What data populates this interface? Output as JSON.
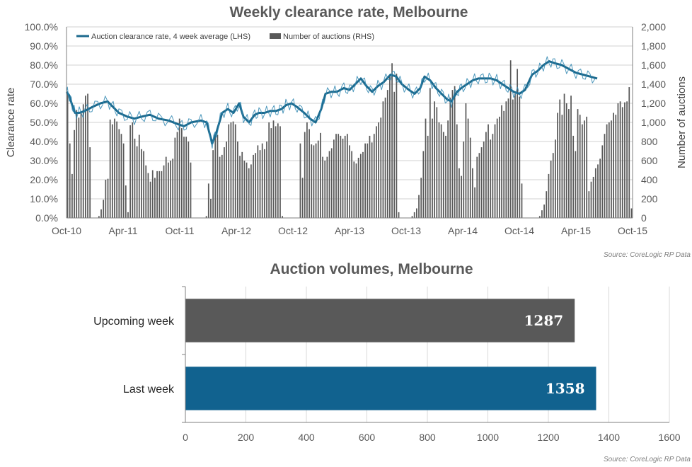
{
  "chart_data": [
    {
      "type": "line",
      "title": "Weekly clearance rate, Melbourne",
      "ylabel": "Clearance rate",
      "y2label": "Number of auctions",
      "ylim": [
        0,
        100
      ],
      "y2lim": [
        0,
        2000
      ],
      "yticks": [
        "0.0%",
        "10.0%",
        "20.0%",
        "30.0%",
        "40.0%",
        "50.0%",
        "60.0%",
        "70.0%",
        "80.0%",
        "90.0%",
        "100.0%"
      ],
      "y2ticks": [
        "0",
        "200",
        "400",
        "600",
        "800",
        "1,000",
        "1,200",
        "1,400",
        "1,600",
        "1,800",
        "2,000"
      ],
      "xticks": [
        "Oct-10",
        "Apr-11",
        "Oct-11",
        "Apr-12",
        "Oct-12",
        "Apr-13",
        "Oct-13",
        "Apr-14",
        "Oct-14",
        "Apr-15",
        "Oct-15"
      ],
      "legend": [
        {
          "name": "Auction clearance rate, 4 week average (LHS)",
          "color": "#1c6a8e"
        },
        {
          "name": "Number of auctions (RHS)",
          "color": "#595959"
        }
      ],
      "grid": true,
      "source": "Source: CoreLogic  RP Data",
      "series": [
        {
          "name": "Auction clearance rate, 4 week average (LHS)",
          "axis": "left",
          "color": "#1c6a8e",
          "points": [
            [
              0,
              66
            ],
            [
              0.2,
              64
            ],
            [
              0.4,
              59
            ],
            [
              0.6,
              55
            ],
            [
              0.9,
              55
            ],
            [
              1.3,
              56
            ],
            [
              1.8,
              58
            ],
            [
              2.4,
              60
            ],
            [
              2.9,
              61
            ],
            [
              3.3,
              58
            ],
            [
              3.7,
              55
            ],
            [
              4.3,
              53
            ],
            [
              4.8,
              52
            ],
            [
              5.3,
              53
            ],
            [
              5.9,
              54
            ],
            [
              6.5,
              52
            ],
            [
              7.2,
              51
            ],
            [
              7.9,
              49
            ],
            [
              8.3,
              48
            ],
            [
              8.8,
              50
            ],
            [
              9.5,
              51
            ],
            [
              9.9,
              50
            ],
            [
              10.3,
              39
            ],
            [
              10.6,
              45
            ],
            [
              11.0,
              55
            ],
            [
              11.4,
              57
            ],
            [
              11.8,
              55
            ],
            [
              12.2,
              60
            ],
            [
              12.5,
              53
            ],
            [
              12.9,
              50
            ],
            [
              13.3,
              54
            ],
            [
              13.6,
              55
            ],
            [
              14.0,
              55
            ],
            [
              14.4,
              56
            ],
            [
              14.8,
              56
            ],
            [
              15.2,
              57
            ],
            [
              15.5,
              59
            ],
            [
              15.9,
              60
            ],
            [
              16.3,
              58
            ],
            [
              16.8,
              55
            ],
            [
              17.2,
              52
            ],
            [
              17.6,
              50
            ],
            [
              18.0,
              57
            ],
            [
              18.3,
              65
            ],
            [
              18.7,
              66
            ],
            [
              19.1,
              66
            ],
            [
              19.6,
              68
            ],
            [
              20.0,
              67
            ],
            [
              20.4,
              70
            ],
            [
              20.8,
              73
            ],
            [
              21.2,
              69
            ],
            [
              21.6,
              66
            ],
            [
              22.0,
              69
            ],
            [
              22.4,
              71
            ],
            [
              22.9,
              75
            ],
            [
              23.3,
              74
            ],
            [
              23.7,
              70
            ],
            [
              24.2,
              67
            ],
            [
              24.6,
              65
            ],
            [
              25.0,
              68
            ],
            [
              25.3,
              74
            ],
            [
              25.7,
              72
            ],
            [
              26.1,
              68
            ],
            [
              26.5,
              65
            ],
            [
              26.9,
              62
            ],
            [
              27.2,
              61
            ],
            [
              27.6,
              66
            ],
            [
              27.9,
              68
            ],
            [
              28.3,
              70
            ],
            [
              28.7,
              72
            ],
            [
              29.1,
              73
            ],
            [
              29.6,
              73
            ],
            [
              30.0,
              73
            ],
            [
              30.4,
              72
            ],
            [
              30.8,
              70
            ],
            [
              31.2,
              68
            ],
            [
              31.6,
              66
            ],
            [
              32.0,
              65
            ],
            [
              32.4,
              67
            ],
            [
              32.9,
              75
            ],
            [
              33.3,
              77
            ],
            [
              33.7,
              80
            ],
            [
              34.1,
              82
            ],
            [
              34.5,
              81
            ],
            [
              35.0,
              80
            ],
            [
              35.5,
              78
            ],
            [
              36.0,
              76
            ],
            [
              36.5,
              75
            ],
            [
              37.0,
              74
            ],
            [
              37.5,
              73
            ]
          ]
        },
        {
          "name": "Number of auctions (RHS)",
          "axis": "right",
          "color": "#595959",
          "values": [
            1300,
            780,
            460,
            920,
            1130,
            1050,
            1100,
            1190,
            1280,
            1300,
            740,
            0,
            0,
            0,
            20,
            90,
            190,
            400,
            410,
            1030,
            980,
            1040,
            1010,
            930,
            880,
            780,
            340,
            60,
            970,
            1000,
            830,
            750,
            870,
            720,
            700,
            550,
            470,
            380,
            500,
            420,
            490,
            490,
            490,
            550,
            640,
            580,
            600,
            620,
            840,
            900,
            1040,
            940,
            850,
            850,
            800,
            580,
            0,
            0,
            0,
            0,
            0,
            0,
            20,
            360,
            200,
            710,
            850,
            870,
            640,
            660,
            740,
            800,
            980,
            1000,
            1010,
            980,
            800,
            650,
            690,
            600,
            580,
            520,
            560,
            660,
            680,
            760,
            710,
            780,
            720,
            800,
            1000,
            940,
            1020,
            960,
            990,
            960,
            20,
            0,
            0,
            0,
            0,
            0,
            0,
            0,
            780,
            420,
            900,
            1000,
            930,
            770,
            760,
            780,
            810,
            890,
            640,
            600,
            640,
            700,
            730,
            820,
            880,
            880,
            860,
            830,
            860,
            880,
            760,
            700,
            590,
            570,
            630,
            670,
            690,
            780,
            780,
            860,
            790,
            880,
            960,
            1000,
            1050,
            1220,
            1260,
            1340,
            1500,
            1620,
            1320,
            1510,
            60,
            0,
            0,
            0,
            0,
            0,
            20,
            60,
            100,
            240,
            420,
            700,
            1040,
            860,
            1360,
            1040,
            1220,
            1160,
            1000,
            980,
            900,
            860,
            1020,
            1260,
            1340,
            1380,
            980,
            520,
            440,
            800,
            1200,
            1040,
            840,
            520,
            320,
            640,
            680,
            740,
            800,
            900,
            980,
            820,
            880,
            980,
            1040,
            1060,
            1180,
            1120,
            1220,
            1250,
            1650,
            1240,
            1300,
            1560,
            1270,
            360,
            0,
            0,
            0,
            0,
            0,
            0,
            0,
            20,
            80,
            140,
            280,
            460,
            600,
            680,
            820,
            1100,
            1240,
            1080,
            1300,
            1200,
            1140,
            1280,
            860,
            700,
            1140,
            1080,
            980,
            1020,
            1060,
            280,
            380,
            430,
            520,
            560,
            620,
            760,
            880,
            980,
            1000,
            1020,
            1100,
            1080,
            1200,
            1220,
            1160,
            1210,
            1220,
            1370,
            100
          ]
        }
      ]
    },
    {
      "type": "bar",
      "orientation": "horizontal",
      "title": "Auction volumes, Melbourne",
      "categories": [
        "Upcoming week",
        "Last week"
      ],
      "values": [
        1287,
        1358
      ],
      "value_labels": [
        "1287",
        "1358"
      ],
      "colors": [
        "#595959",
        "#11628f"
      ],
      "xlim": [
        0,
        1600
      ],
      "xticks": [
        "0",
        "200",
        "400",
        "600",
        "800",
        "1000",
        "1200",
        "1400",
        "1600"
      ],
      "grid": true,
      "source": "Source: CoreLogic  RP Data"
    }
  ]
}
